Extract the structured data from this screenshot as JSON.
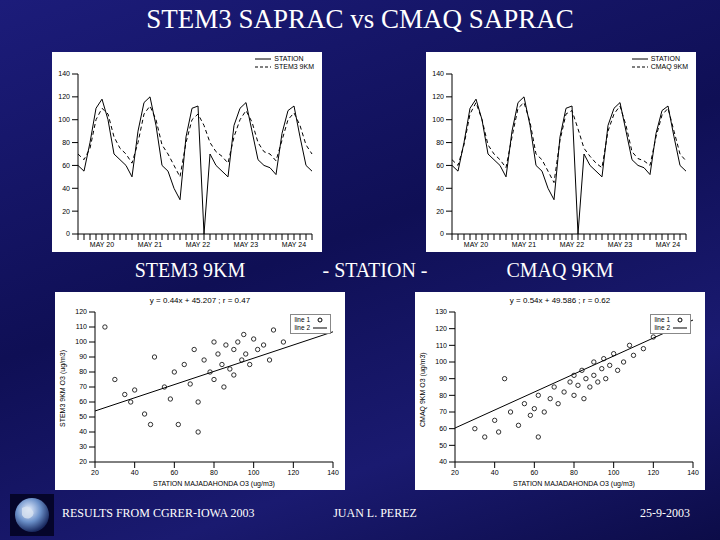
{
  "title": "STEM3 SAPRAC vs CMAQ SAPRAC",
  "panel_labels": [
    "STEM3 9KM",
    "- STATION -",
    "CMAQ 9KM"
  ],
  "footer": [
    "RESULTS FROM CGRER-IOWA 2003",
    "JUAN L. PEREZ",
    "25-9-2003"
  ],
  "chart_data": [
    {
      "type": "line",
      "categories": [
        null,
        null,
        null,
        null,
        "MAY 20",
        null,
        null,
        null,
        null,
        null,
        null,
        null,
        "MAY 21",
        null,
        null,
        null,
        null,
        null,
        null,
        null,
        "MAY 22",
        null,
        null,
        null,
        null,
        null,
        null,
        null,
        "MAY 23",
        null,
        null,
        null,
        null,
        null,
        null,
        null,
        "MAY 24",
        null,
        null,
        null
      ],
      "ylim": [
        0,
        140
      ],
      "yticks": [
        0,
        20,
        40,
        60,
        80,
        100,
        120,
        140
      ],
      "series": [
        {
          "name": "STATION",
          "color": "#000000",
          "line_style": "solid",
          "values": [
            60,
            55,
            80,
            110,
            118,
            100,
            70,
            65,
            60,
            50,
            90,
            115,
            120,
            95,
            60,
            55,
            40,
            30,
            85,
            110,
            112,
            0,
            70,
            60,
            55,
            50,
            95,
            110,
            115,
            90,
            65,
            60,
            58,
            52,
            88,
            108,
            112,
            85,
            60,
            55
          ]
        },
        {
          "name": "STEM3 9KM",
          "color": "#000000",
          "line_style": "dashed",
          "values": [
            70,
            65,
            75,
            100,
            110,
            105,
            85,
            75,
            70,
            62,
            80,
            105,
            112,
            100,
            78,
            70,
            60,
            50,
            80,
            100,
            105,
            95,
            80,
            72,
            68,
            62,
            85,
            100,
            108,
            98,
            80,
            72,
            70,
            64,
            82,
            100,
            106,
            95,
            78,
            70
          ]
        }
      ]
    },
    {
      "type": "line",
      "categories": [
        null,
        null,
        null,
        null,
        "MAY 20",
        null,
        null,
        null,
        null,
        null,
        null,
        null,
        "MAY 21",
        null,
        null,
        null,
        null,
        null,
        null,
        null,
        "MAY 22",
        null,
        null,
        null,
        null,
        null,
        null,
        null,
        "MAY 23",
        null,
        null,
        null,
        null,
        null,
        null,
        null,
        "MAY 24",
        null,
        null,
        null
      ],
      "ylim": [
        0,
        140
      ],
      "yticks": [
        0,
        20,
        40,
        60,
        80,
        100,
        120,
        140
      ],
      "series": [
        {
          "name": "STATION",
          "color": "#000000",
          "line_style": "solid",
          "values": [
            60,
            55,
            80,
            110,
            118,
            100,
            70,
            65,
            60,
            50,
            90,
            115,
            120,
            95,
            60,
            55,
            40,
            30,
            85,
            110,
            112,
            0,
            70,
            60,
            55,
            50,
            95,
            110,
            115,
            90,
            65,
            60,
            58,
            52,
            88,
            108,
            112,
            85,
            60,
            55
          ]
        },
        {
          "name": "CMAQ 9KM",
          "color": "#000000",
          "line_style": "dashed",
          "values": [
            65,
            60,
            78,
            105,
            115,
            100,
            78,
            70,
            65,
            58,
            85,
            110,
            115,
            98,
            70,
            65,
            55,
            45,
            82,
            105,
            108,
            92,
            75,
            68,
            62,
            58,
            90,
            105,
            112,
            95,
            72,
            66,
            64,
            60,
            85,
            104,
            110,
            90,
            70,
            64
          ]
        }
      ]
    },
    {
      "type": "scatter",
      "subtitle": "y = 0.44x + 45.207 ; r = 0.47",
      "x_label": "STATION MAJADAHONDA O3 (ug/m3)",
      "y_label": "STEM3 9KM O3 (ug/m3)",
      "xlim": [
        20,
        140
      ],
      "xticks": [
        20,
        40,
        60,
        80,
        100,
        120,
        140
      ],
      "ylim": [
        20,
        120
      ],
      "yticks": [
        20,
        30,
        40,
        50,
        60,
        70,
        80,
        90,
        100,
        110,
        120
      ],
      "legend": "upper right",
      "series": [
        {
          "name": "line 1",
          "type": "scatter",
          "marker": "circle",
          "color": "#000000",
          "x": [
            30,
            35,
            38,
            40,
            45,
            50,
            55,
            58,
            60,
            62,
            65,
            68,
            70,
            72,
            75,
            78,
            80,
            80,
            82,
            84,
            85,
            86,
            88,
            90,
            90,
            92,
            94,
            95,
            96,
            98,
            100,
            102,
            105,
            108,
            110,
            115,
            120,
            72,
            48,
            25
          ],
          "values": [
            75,
            65,
            60,
            68,
            52,
            90,
            70,
            62,
            80,
            45,
            85,
            72,
            95,
            60,
            88,
            80,
            100,
            75,
            92,
            85,
            70,
            98,
            82,
            95,
            78,
            100,
            88,
            105,
            92,
            85,
            102,
            95,
            98,
            88,
            108,
            100,
            110,
            40,
            45,
            110
          ]
        },
        {
          "name": "line 2",
          "type": "line",
          "line_style": "solid",
          "color": "#000000",
          "slope": 0.44,
          "intercept": 45.207
        }
      ]
    },
    {
      "type": "scatter",
      "subtitle": "y = 0.54x + 49.586 ; r = 0.62",
      "x_label": "STATION MAJADAHONDA O3 (ug/m3)",
      "y_label": "CMAQ 9KM O3 (ug/m3)",
      "xlim": [
        20,
        140
      ],
      "xticks": [
        20,
        40,
        60,
        80,
        100,
        120,
        140
      ],
      "ylim": [
        40,
        130
      ],
      "yticks": [
        40,
        50,
        60,
        70,
        80,
        90,
        100,
        110,
        120,
        130
      ],
      "legend": "upper right",
      "series": [
        {
          "name": "line 1",
          "type": "scatter",
          "marker": "circle",
          "color": "#000000",
          "x": [
            30,
            35,
            40,
            42,
            48,
            52,
            55,
            58,
            60,
            62,
            65,
            68,
            70,
            72,
            75,
            78,
            80,
            80,
            82,
            84,
            85,
            86,
            88,
            90,
            90,
            92,
            94,
            95,
            96,
            98,
            100,
            102,
            105,
            108,
            110,
            115,
            120,
            130,
            45,
            62
          ],
          "values": [
            60,
            55,
            65,
            58,
            70,
            62,
            75,
            68,
            72,
            80,
            70,
            78,
            85,
            75,
            82,
            88,
            80,
            92,
            86,
            95,
            78,
            90,
            85,
            92,
            100,
            88,
            96,
            102,
            90,
            98,
            105,
            95,
            100,
            110,
            104,
            108,
            115,
            120,
            90,
            55
          ]
        },
        {
          "name": "line 2",
          "type": "line",
          "line_style": "solid",
          "color": "#000000",
          "slope": 0.54,
          "intercept": 49.586
        }
      ]
    }
  ]
}
